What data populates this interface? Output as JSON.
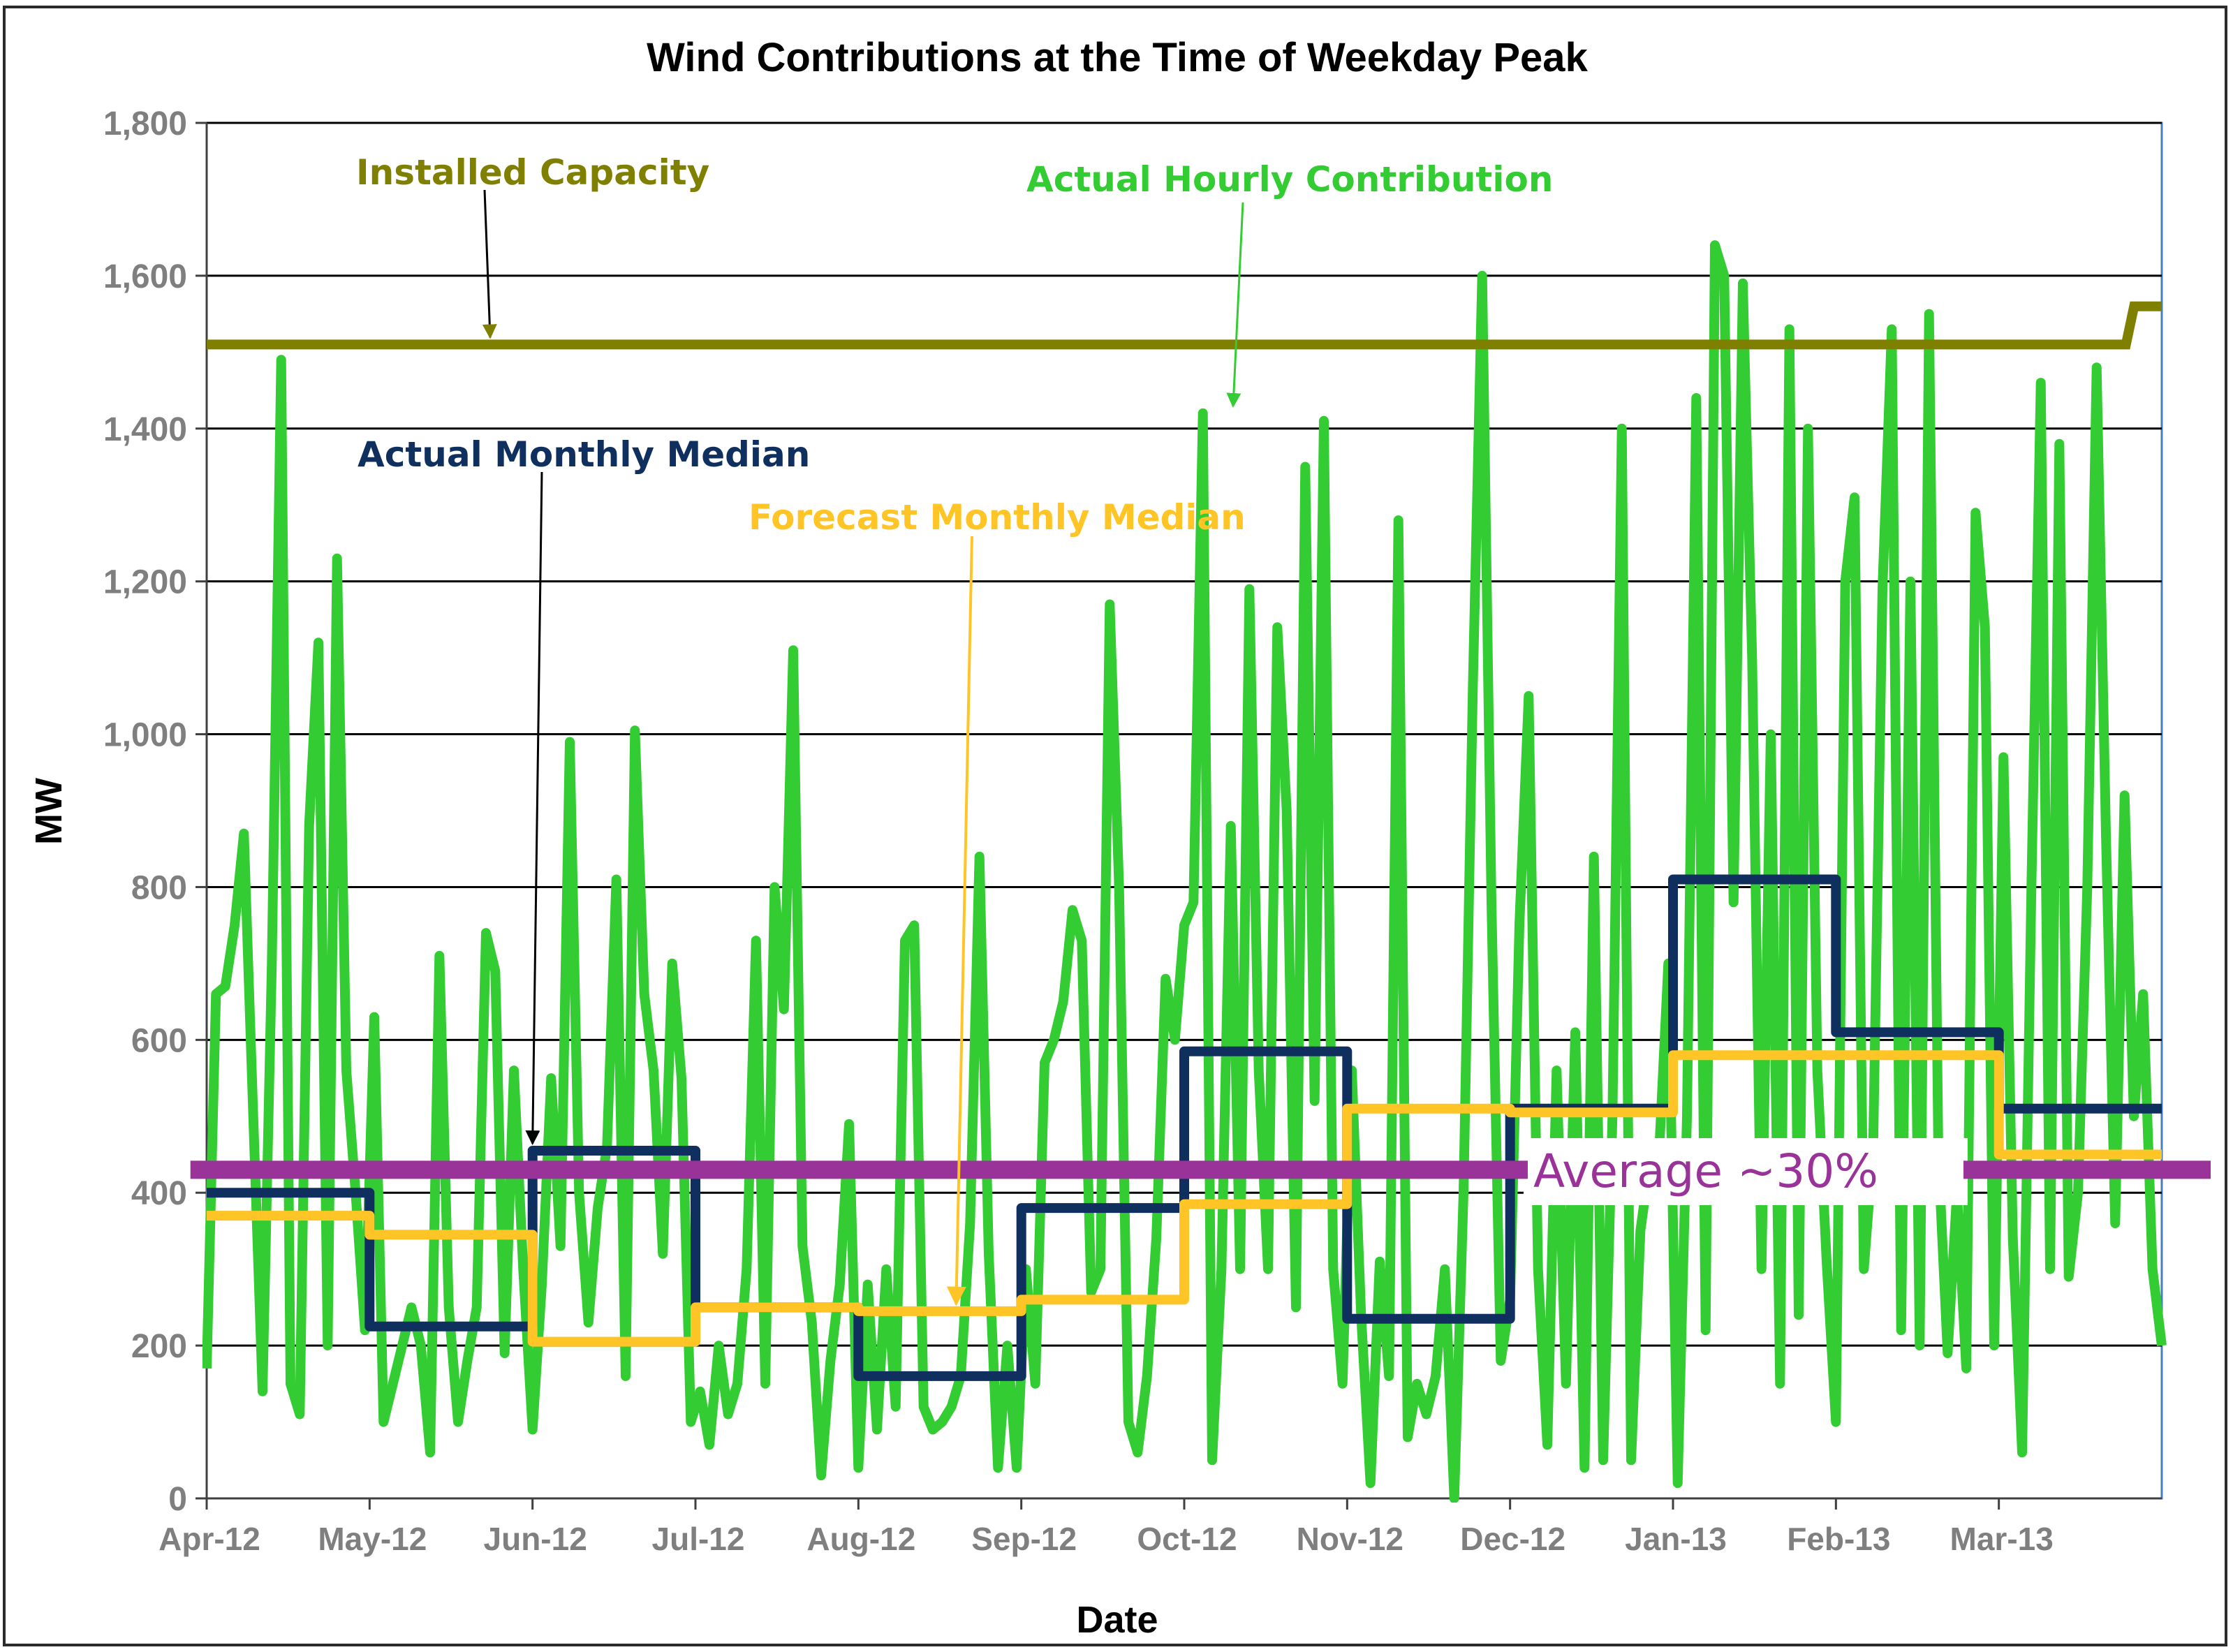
{
  "chart_data": {
    "type": "line",
    "title": "Wind Contributions at the Time of Weekday Peak",
    "xlabel": "Date",
    "ylabel": "MW",
    "ylim": [
      0,
      1800
    ],
    "yticks": [
      0,
      200,
      400,
      600,
      800,
      1000,
      1200,
      1400,
      1600,
      1800
    ],
    "ytick_labels": [
      "0",
      "200",
      "400",
      "600",
      "800",
      "1,000",
      "1,200",
      "1,400",
      "1,600",
      "1,800"
    ],
    "xlim": [
      0,
      12
    ],
    "xtick_labels": [
      "Apr-12",
      "May-12",
      "Jun-12",
      "Jul-12",
      "Aug-12",
      "Sep-12",
      "Oct-12",
      "Nov-12",
      "Dec-12",
      "Jan-13",
      "Feb-13",
      "Mar-13"
    ],
    "grid": true,
    "colors": {
      "installed": "#808000",
      "hourly": "#33cc33",
      "actual_median": "#0f2f5f",
      "forecast_median": "#ffc425",
      "average": "#993399"
    },
    "series": [
      {
        "name": "Installed Capacity",
        "style": "step",
        "x": [
          0,
          11.78,
          11.83,
          12
        ],
        "values": [
          1510,
          1510,
          1560,
          1560
        ]
      },
      {
        "name": "Actual Monthly Median",
        "style": "step",
        "x": [
          0,
          1,
          1,
          2,
          2,
          3,
          3,
          4,
          4,
          5,
          5,
          6,
          6,
          7,
          7,
          8,
          8,
          9,
          9,
          10,
          10,
          11,
          11,
          12
        ],
        "values": [
          400,
          400,
          225,
          225,
          455,
          455,
          250,
          250,
          160,
          160,
          380,
          380,
          585,
          585,
          235,
          235,
          510,
          510,
          810,
          810,
          610,
          610,
          510,
          510
        ]
      },
      {
        "name": "Forecast Monthly Median",
        "style": "step",
        "x": [
          0,
          1,
          1,
          2,
          2,
          3,
          3,
          4,
          4,
          5,
          5,
          6,
          6,
          7,
          7,
          8,
          8,
          9,
          9,
          10,
          10,
          11,
          11,
          12
        ],
        "values": [
          370,
          370,
          345,
          345,
          205,
          205,
          250,
          250,
          245,
          245,
          260,
          260,
          385,
          385,
          510,
          510,
          505,
          505,
          580,
          580,
          580,
          580,
          450,
          450
        ]
      },
      {
        "name": "Actual Hourly Contribution",
        "style": "line",
        "values": [
          170,
          660,
          670,
          750,
          870,
          500,
          140,
          700,
          1490,
          150,
          110,
          880,
          1120,
          200,
          1230,
          560,
          400,
          220,
          630,
          100,
          150,
          200,
          250,
          200,
          60,
          710,
          250,
          100,
          180,
          250,
          740,
          690,
          190,
          560,
          300,
          90,
          280,
          550,
          330,
          990,
          400,
          230,
          380,
          460,
          810,
          160,
          1005,
          660,
          560,
          320,
          700,
          550,
          100,
          140,
          70,
          200,
          110,
          150,
          300,
          730,
          150,
          800,
          640,
          1110,
          330,
          230,
          30,
          180,
          280,
          490,
          40,
          280,
          90,
          300,
          120,
          730,
          750,
          120,
          90,
          100,
          120,
          160,
          360,
          840,
          320,
          40,
          200,
          40,
          300,
          150,
          570,
          600,
          650,
          770,
          730,
          270,
          300,
          1170,
          800,
          100,
          60,
          160,
          340,
          680,
          600,
          750,
          780,
          1420,
          50,
          300,
          880,
          300,
          1190,
          560,
          300,
          1140,
          900,
          250,
          1350,
          520,
          1410,
          300,
          150,
          560,
          240,
          20,
          310,
          160,
          1280,
          80,
          150,
          110,
          160,
          300,
          0,
          400,
          1060,
          1600,
          780,
          180,
          260,
          750,
          1050,
          300,
          70,
          560,
          150,
          610,
          40,
          840,
          50,
          500,
          1400,
          50,
          350,
          440,
          450,
          700,
          20,
          500,
          1440,
          220,
          1640,
          1600,
          780,
          1590,
          1100,
          300,
          1000,
          150,
          1530,
          240,
          1400,
          560,
          310,
          100,
          1200,
          1310,
          300,
          460,
          1190,
          1530,
          220,
          1200,
          200,
          1550,
          450,
          190,
          400,
          170,
          1290,
          1140,
          200,
          970,
          340,
          60,
          800,
          1460,
          300,
          1380,
          290,
          400,
          800,
          1480,
          870,
          360,
          920,
          500,
          660,
          300,
          200
        ]
      },
      {
        "name": "Average ~30%",
        "style": "line",
        "x": [
          -0.1,
          12.3
        ],
        "values": [
          430,
          430
        ]
      }
    ],
    "annotations": [
      {
        "label": "Installed Capacity",
        "target_x": 1.74,
        "target_y": 1510
      },
      {
        "label": "Actual Hourly Contribution",
        "target_x": 6.3,
        "target_y": 1420
      },
      {
        "label": "Actual Monthly Median",
        "target_x": 2.0,
        "target_y": 455
      },
      {
        "label": "Forecast Monthly Median",
        "target_x": 4.6,
        "target_y": 245
      },
      {
        "label": "Average ~30%"
      }
    ]
  }
}
